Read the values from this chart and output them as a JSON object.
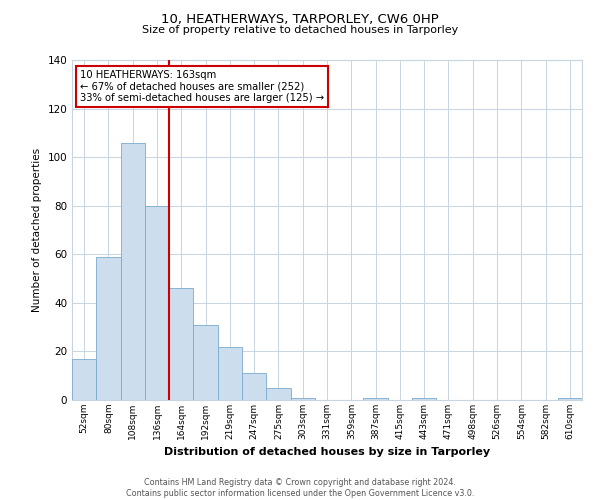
{
  "title": "10, HEATHERWAYS, TARPORLEY, CW6 0HP",
  "subtitle": "Size of property relative to detached houses in Tarporley",
  "xlabel": "Distribution of detached houses by size in Tarporley",
  "ylabel": "Number of detached properties",
  "bin_labels": [
    "52sqm",
    "80sqm",
    "108sqm",
    "136sqm",
    "164sqm",
    "192sqm",
    "219sqm",
    "247sqm",
    "275sqm",
    "303sqm",
    "331sqm",
    "359sqm",
    "387sqm",
    "415sqm",
    "443sqm",
    "471sqm",
    "498sqm",
    "526sqm",
    "554sqm",
    "582sqm",
    "610sqm"
  ],
  "bar_heights": [
    17,
    59,
    106,
    80,
    46,
    31,
    22,
    11,
    5,
    1,
    0,
    0,
    1,
    0,
    1,
    0,
    0,
    0,
    0,
    0,
    1
  ],
  "bar_color": "#ccdded",
  "bar_edge_color": "#7aabcc",
  "ylim": [
    0,
    140
  ],
  "yticks": [
    0,
    20,
    40,
    60,
    80,
    100,
    120,
    140
  ],
  "property_line_x": 4,
  "property_line_color": "#cc0000",
  "annotation_line1": "10 HEATHERWAYS: 163sqm",
  "annotation_line2": "← 67% of detached houses are smaller (252)",
  "annotation_line3": "33% of semi-detached houses are larger (125) →",
  "annotation_box_edge_color": "#cc0000",
  "footnote": "Contains HM Land Registry data © Crown copyright and database right 2024.\nContains public sector information licensed under the Open Government Licence v3.0.",
  "background_color": "#ffffff",
  "grid_color": "#c8d4e0"
}
